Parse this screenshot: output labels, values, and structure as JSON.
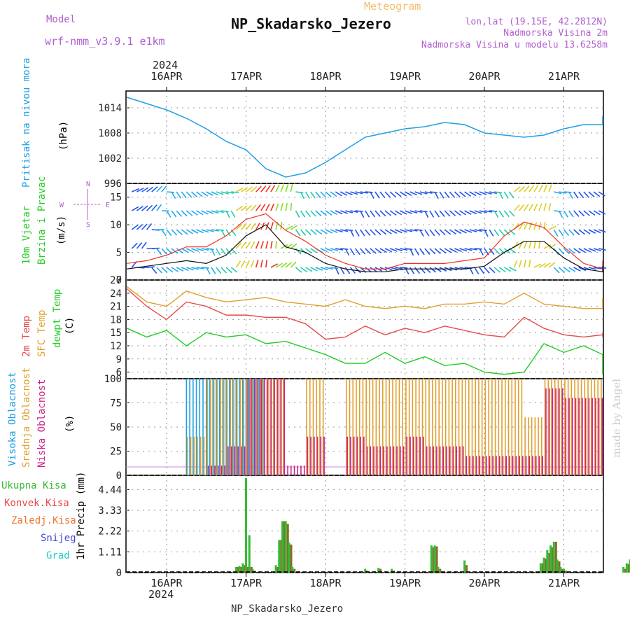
{
  "header": {
    "model_label": "Model",
    "model_value": "wrf-nmm_v3.9.1  e1km",
    "meteogram_label": "Meteogram",
    "station_title": "NP_Skadarsko_Jezero",
    "lonlat": "lon,lat (19.15E, 42.2812N)",
    "elevation": "Nadmorska Visina 2m",
    "model_elevation": "Nadmorska Visina u modelu 13.6258m",
    "footer_station": "NP_Skadarsko_Jezero",
    "watermark": "made by Angel"
  },
  "colors": {
    "pressure": "#1ea0e6",
    "temp2m": "#e84a4a",
    "sfc_temp": "#e0a030",
    "dewpt": "#22cc22",
    "high_cloud": "#1ea0e6",
    "mid_cloud": "#e0a030",
    "low_cloud": "#cc2288",
    "total_precip": "#33bb33",
    "conv_precip": "#e84a4a",
    "frozen_precip": "#ee7733",
    "snow": "#4444dd",
    "graupel": "#22cccc",
    "title_purple": "#b060d0",
    "title_orange": "#f0c070"
  },
  "axes": {
    "year": "2024",
    "days": [
      "16APR",
      "17APR",
      "18APR",
      "19APR",
      "20APR",
      "21APR"
    ]
  },
  "chart_data": [
    {
      "type": "line",
      "name": "pressure",
      "ylabel_1": "Pritisak na nivou mora",
      "ylabel_2": "(hPa)",
      "yticks": [
        "1014",
        "1008",
        "1002",
        "996"
      ],
      "ylim": [
        996,
        1018
      ],
      "x_unit": "hours from 16APR 00UTC",
      "x": [
        -12,
        -6,
        0,
        6,
        12,
        18,
        24,
        30,
        36,
        42,
        48,
        54,
        60,
        66,
        72,
        78,
        84,
        90,
        96,
        102,
        108,
        114,
        120,
        126,
        132,
        138,
        144
      ],
      "series": [
        {
          "values": [
            1016.5,
            1015.0,
            1013.5,
            1011.5,
            1009.0,
            1006.0,
            1004.0,
            999.5,
            997.5,
            998.5,
            1001.0,
            1004.0,
            1007.0,
            1008.0,
            1009.0,
            1009.5,
            1010.5,
            1010.0,
            1008.0,
            1007.5,
            1007.0,
            1007.5,
            1009.0,
            1010.0,
            1010.0,
            1011.0,
            1012.0
          ]
        }
      ]
    },
    {
      "type": "line",
      "name": "wind",
      "ylabel_1": "10m Vjetar",
      "ylabel_2": "Brzina i Pravac",
      "ylabel_3": "(m/s)",
      "compass": {
        "n": "N",
        "s": "S",
        "e": "E",
        "w": "W"
      },
      "yticks": [
        "15",
        "10",
        "5",
        "0"
      ],
      "ylim": [
        0,
        17.5
      ],
      "x_unit": "hours from 16APR 00UTC",
      "x": [
        -12,
        -6,
        0,
        6,
        12,
        18,
        24,
        30,
        36,
        42,
        48,
        54,
        60,
        66,
        72,
        78,
        84,
        90,
        96,
        102,
        108,
        114,
        120,
        126,
        132,
        138,
        144
      ],
      "series": [
        {
          "name": "speed",
          "values": [
            2.0,
            2.5,
            3.0,
            3.5,
            3.0,
            4.5,
            8.0,
            10.0,
            6.0,
            5.0,
            3.0,
            2.0,
            1.5,
            1.5,
            2.0,
            2.0,
            2.0,
            2.0,
            2.5,
            5.0,
            7.0,
            7.0,
            4.0,
            2.0,
            1.5,
            2.0,
            2.5
          ]
        },
        {
          "name": "gust",
          "values": [
            3.0,
            3.5,
            4.5,
            6.0,
            6.0,
            8.0,
            11.0,
            12.0,
            9.0,
            7.0,
            4.5,
            3.0,
            2.0,
            2.0,
            3.0,
            3.0,
            3.0,
            3.5,
            4.0,
            8.0,
            10.5,
            9.5,
            6.0,
            3.0,
            2.0,
            3.0,
            3.5
          ]
        }
      ]
    },
    {
      "type": "line",
      "name": "temperature",
      "ylabel_1": "2m Temp",
      "ylabel_2": "SFC Temp",
      "ylabel_3": "dewpt Temp",
      "ylabel_4": "(C)",
      "yticks": [
        "27",
        "24",
        "21",
        "18",
        "15",
        "12",
        "9",
        "6"
      ],
      "ylim": [
        4.5,
        27
      ],
      "x_unit": "hours from 16APR 00UTC",
      "x": [
        -12,
        -6,
        0,
        6,
        12,
        18,
        24,
        30,
        36,
        42,
        48,
        54,
        60,
        66,
        72,
        78,
        84,
        90,
        96,
        102,
        108,
        114,
        120,
        126,
        132,
        138,
        144
      ],
      "series": [
        {
          "name": "2m Temp",
          "values": [
            25.0,
            21.0,
            18.0,
            22.0,
            21.0,
            19.0,
            19.0,
            18.5,
            18.5,
            17.0,
            13.5,
            14.0,
            16.5,
            14.5,
            16.0,
            15.0,
            16.5,
            15.5,
            14.5,
            14.0,
            18.5,
            16.0,
            14.5,
            14.0,
            14.5,
            14.0,
            15.0
          ]
        },
        {
          "name": "SFC Temp",
          "values": [
            25.5,
            22.0,
            21.0,
            24.5,
            23.0,
            22.0,
            22.5,
            23.0,
            22.0,
            21.5,
            21.0,
            22.5,
            21.0,
            20.5,
            21.0,
            20.5,
            21.5,
            21.5,
            22.0,
            21.5,
            24.0,
            21.5,
            21.0,
            20.5,
            20.5,
            21.5,
            23.0
          ]
        },
        {
          "name": "dewpt Temp",
          "values": [
            16.0,
            14.0,
            15.5,
            12.0,
            15.0,
            14.0,
            14.5,
            12.5,
            13.0,
            11.5,
            10.0,
            8.0,
            8.0,
            10.5,
            8.0,
            9.5,
            7.5,
            8.0,
            6.0,
            5.5,
            6.0,
            12.5,
            10.5,
            12.0,
            10.0,
            8.0,
            5.5
          ]
        }
      ]
    },
    {
      "type": "bar",
      "name": "cloud_cover",
      "ylabel_1": "Visoka Oblacnost",
      "ylabel_2": "Srednja Oblacnost",
      "ylabel_3": "Niska Oblacnost",
      "ylabel_4": "(%)",
      "yticks": [
        "100",
        "75",
        "50",
        "25",
        "0"
      ],
      "ylim": [
        0,
        100
      ],
      "x_unit": "hours from 16APR 00UTC",
      "x": [
        -12,
        -6,
        0,
        6,
        12,
        18,
        24,
        30,
        36,
        42,
        48,
        54,
        60,
        66,
        72,
        78,
        84,
        90,
        96,
        102,
        108,
        114,
        120,
        126,
        132,
        138,
        144
      ],
      "series": [
        {
          "name": "Visoka Oblacnost",
          "values": [
            0,
            0,
            0,
            100,
            100,
            100,
            100,
            0,
            0,
            0,
            0,
            0,
            0,
            0,
            0,
            0,
            0,
            0,
            0,
            0,
            0,
            0,
            0,
            0,
            0,
            0,
            0
          ]
        },
        {
          "name": "Srednja Oblacnost",
          "values": [
            0,
            0,
            0,
            40,
            100,
            100,
            100,
            100,
            0,
            100,
            0,
            100,
            100,
            100,
            100,
            100,
            100,
            100,
            100,
            100,
            60,
            100,
            100,
            100,
            100,
            100,
            100
          ]
        },
        {
          "name": "Niska Oblacnost",
          "values": [
            0,
            0,
            0,
            0,
            10,
            30,
            100,
            100,
            10,
            40,
            0,
            40,
            30,
            30,
            40,
            30,
            30,
            20,
            20,
            20,
            20,
            90,
            80,
            80,
            60,
            30,
            20
          ]
        }
      ]
    },
    {
      "type": "bar",
      "name": "precipitation",
      "legend": [
        "Ukupna Kisa",
        "Konvek.Kisa",
        "Zaledj.Kisa",
        "Snijeg",
        "Grad"
      ],
      "ylabel_1": "1hr Precip",
      "ylabel_2": "(mm)",
      "yticks": [
        "4.44",
        "3.33",
        "2.22",
        "1.11",
        "0"
      ],
      "ylim": [
        0,
        5.2
      ],
      "x_unit": "hours from 16APR 00UTC",
      "x": [
        21,
        22,
        23,
        24,
        25,
        26,
        33,
        34,
        35,
        36,
        37,
        38,
        60,
        64,
        68,
        80,
        81,
        82,
        90,
        113,
        114,
        115,
        116,
        117,
        118,
        119,
        120,
        138,
        139,
        140,
        141
      ],
      "series": [
        {
          "name": "Ukupna Kisa",
          "values": [
            0.3,
            0.35,
            0.5,
            5.05,
            2.0,
            0.2,
            0.4,
            1.75,
            2.75,
            2.75,
            1.6,
            0.3,
            0.2,
            0.25,
            0.2,
            1.45,
            1.45,
            0.3,
            0.65,
            0.5,
            0.8,
            1.2,
            1.45,
            1.65,
            0.7,
            0.3,
            0.2,
            0.3,
            0.5,
            0.7,
            0.6
          ]
        },
        {
          "name": "Konvek.Kisa",
          "values": [
            0.3,
            0.3,
            0.4,
            0.3,
            0.3,
            0.1,
            0.3,
            1.75,
            2.75,
            2.6,
            1.5,
            0.2,
            0.1,
            0.2,
            0.1,
            1.35,
            1.4,
            0.2,
            0.4,
            0.5,
            0.75,
            1.05,
            1.35,
            1.65,
            0.6,
            0.2,
            0.1,
            0.2,
            0.45,
            0.65,
            0.5
          ]
        }
      ]
    }
  ]
}
